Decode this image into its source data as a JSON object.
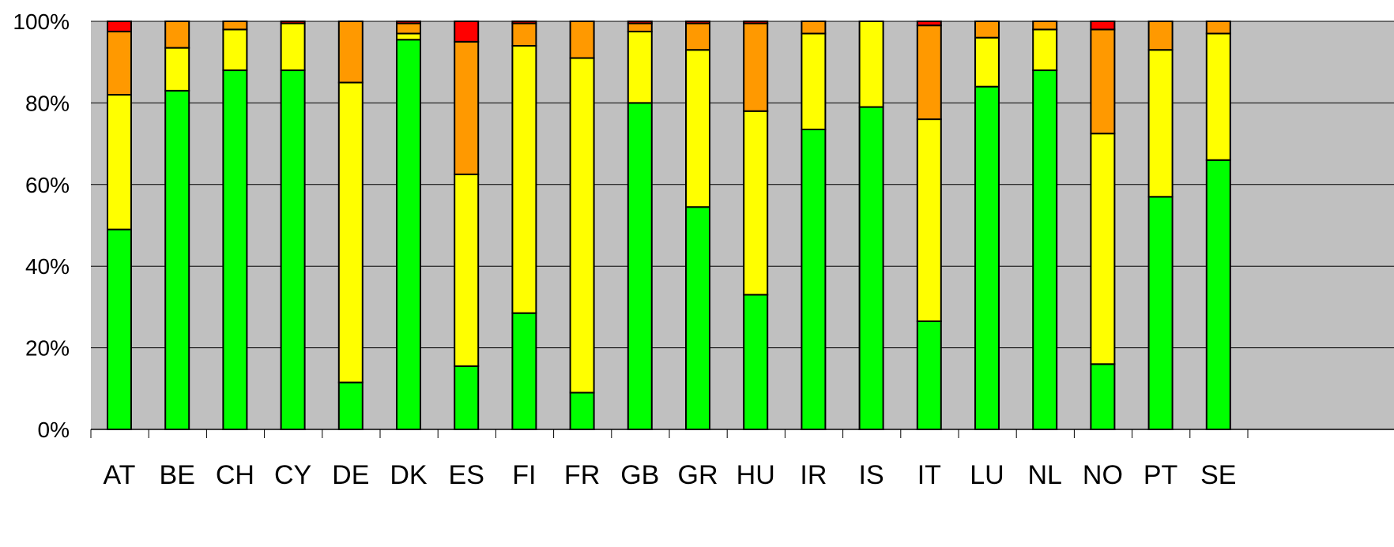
{
  "chart_data": {
    "type": "bar",
    "stacked": true,
    "percent": true,
    "title": "",
    "xlabel": "",
    "ylabel": "",
    "ylim": [
      0,
      100
    ],
    "y_ticks": [
      "0%",
      "20%",
      "40%",
      "60%",
      "80%",
      "100%"
    ],
    "grid": "horizontal",
    "legend": "none",
    "categories": [
      "AT",
      "BE",
      "CH",
      "CY",
      "DE",
      "DK",
      "ES",
      "FI",
      "FR",
      "GB",
      "GR",
      "HU",
      "IR",
      "IS",
      "IT",
      "LU",
      "NL",
      "NO",
      "PT",
      "SE"
    ],
    "series": [
      {
        "color": "#00ff00",
        "values": [
          49,
          83,
          88,
          88,
          11.5,
          95.5,
          15.5,
          28.5,
          9,
          80,
          54.5,
          33,
          73.5,
          79,
          26.5,
          84,
          88,
          16,
          57,
          66
        ]
      },
      {
        "color": "#ffff00",
        "values": [
          33,
          10.5,
          10,
          11.5,
          73.5,
          1.5,
          47,
          65.5,
          82,
          17.5,
          38.5,
          45,
          23.5,
          21,
          49.5,
          12,
          10,
          56.5,
          36,
          31
        ]
      },
      {
        "color": "#ff9900",
        "values": [
          15.5,
          6.5,
          2,
          0,
          15,
          2.5,
          32.5,
          5.5,
          9,
          2,
          6.5,
          21.5,
          3,
          0,
          23,
          4,
          2,
          25.5,
          7,
          3
        ]
      },
      {
        "color": "#ff0000",
        "values": [
          2.5,
          0,
          0,
          0.5,
          0,
          0.5,
          5,
          0.5,
          0,
          0.5,
          0.5,
          0.5,
          0,
          0,
          1,
          0,
          0,
          2,
          0,
          0
        ]
      }
    ],
    "colors": {
      "plot_background": "#c0c0c0",
      "gridline": "#000000",
      "bar_outline": "#000000"
    }
  }
}
